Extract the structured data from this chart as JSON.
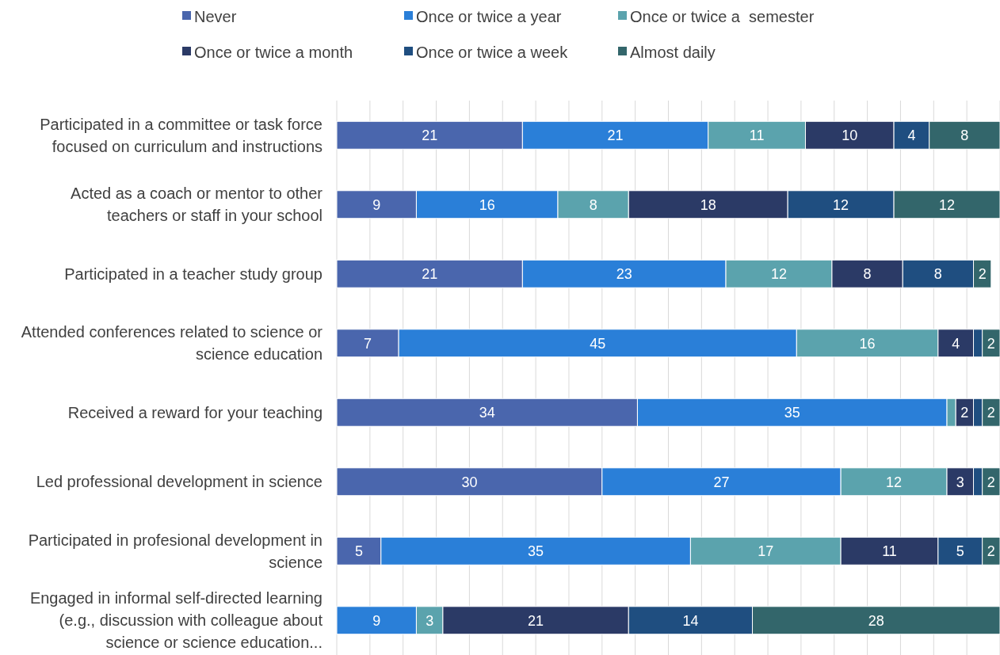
{
  "chart_data": {
    "type": "bar",
    "orientation": "horizontal",
    "stacked": true,
    "grid": "x",
    "legend": "top",
    "tick_labels": "y",
    "categories": [
      "Participated in a committee or task force focused on curriculum and instructions",
      "Acted as a coach or mentor to other teachers or staff in your school",
      "Participated in a teacher study group",
      "Attended conferences related to science or science education",
      "Received a reward for your teaching",
      "Led professional development in science",
      "Participated in profesional development in science",
      "Engaged in informal self-directed learning (e.g., discussion with colleague about science or science education..."
    ],
    "xlim": [
      0,
      75
    ],
    "xticks": [
      {
        "value": 0,
        "label": null
      },
      {
        "value": 3.75,
        "label": null
      },
      {
        "value": 7.5,
        "label": null
      },
      {
        "value": 11.25,
        "label": null
      },
      {
        "value": 15,
        "label": null
      },
      {
        "value": 18.75,
        "label": null
      },
      {
        "value": 22.5,
        "label": null
      },
      {
        "value": 26.25,
        "label": null
      },
      {
        "value": 30,
        "label": null
      },
      {
        "value": 33.75,
        "label": null
      },
      {
        "value": 37.5,
        "label": null
      },
      {
        "value": 41.25,
        "label": null
      },
      {
        "value": 45,
        "label": null
      },
      {
        "value": 48.75,
        "label": null
      },
      {
        "value": 52.5,
        "label": null
      },
      {
        "value": 56.25,
        "label": null
      },
      {
        "value": 60,
        "label": null
      },
      {
        "value": 63.75,
        "label": null
      },
      {
        "value": 67.5,
        "label": null
      },
      {
        "value": 71.25,
        "label": null
      },
      {
        "value": 75,
        "label": null
      }
    ],
    "series": [
      {
        "name": "Never",
        "color": "#4a66ad",
        "values": [
          21,
          9,
          21,
          7,
          34,
          30,
          5,
          null
        ],
        "value_labels": [
          "21",
          "9",
          "21",
          "7",
          "34",
          "30",
          "5",
          null
        ]
      },
      {
        "name": "Once or twice a year",
        "color": "#2a7fd8",
        "values": [
          21,
          16,
          23,
          45,
          35,
          27,
          35,
          9
        ],
        "value_labels": [
          "21",
          "16",
          "23",
          "45",
          "35",
          "27",
          "35",
          "9"
        ]
      },
      {
        "name": "Once or twice a  semester",
        "color": "#5ba3ad",
        "values": [
          11,
          8,
          12,
          16,
          1,
          12,
          17,
          3
        ],
        "value_labels": [
          "11",
          "8",
          "12",
          "16",
          null,
          "12",
          "17",
          "3"
        ]
      },
      {
        "name": "Once or twice a month",
        "color": "#2b3a66",
        "values": [
          10,
          18,
          8,
          4,
          2,
          3,
          11,
          21
        ],
        "value_labels": [
          "10",
          "18",
          "8",
          "4",
          "2",
          "3",
          "11",
          "21"
        ]
      },
      {
        "name": "Once or twice a week",
        "color": "#1f4e80",
        "values": [
          4,
          12,
          8,
          1,
          1,
          1,
          5,
          14
        ],
        "value_labels": [
          "4",
          "12",
          "8",
          null,
          null,
          null,
          "5",
          "14"
        ]
      },
      {
        "name": "Almost daily",
        "color": "#33666b",
        "values": [
          8,
          12,
          2,
          2,
          2,
          2,
          2,
          28
        ],
        "value_labels": [
          "8",
          "12",
          "2",
          "2",
          "2",
          "2",
          "2",
          "28"
        ]
      }
    ]
  }
}
